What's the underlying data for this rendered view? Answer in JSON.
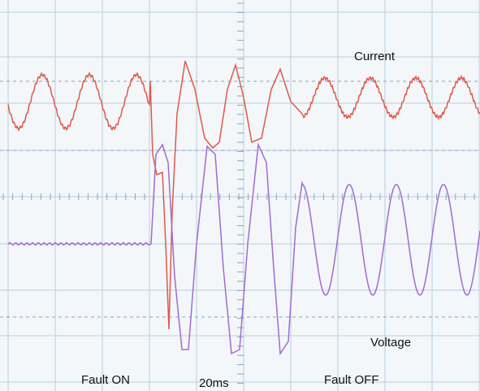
{
  "labels": {
    "current": "Current",
    "voltage": "Voltage",
    "fault_on": "Fault ON",
    "time_div": "20ms",
    "fault_off": "Fault OFF"
  }
}
